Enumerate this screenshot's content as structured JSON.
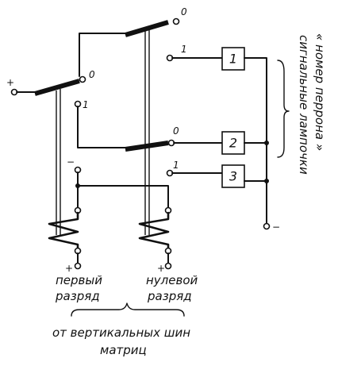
{
  "contacts": {
    "top_right": "0",
    "sw1_mid": "0",
    "plus_left": "+",
    "sw1_one": "1",
    "sw2_zero": "0",
    "minus_rail": "−",
    "sw2_one": "1",
    "plus_coil1": "+",
    "plus_coil2": "+",
    "minus_bus": "−",
    "lamp1_contact": "1",
    "lamp3_contact": "1"
  },
  "lamps": [
    "1",
    "2",
    "3"
  ],
  "captions": {
    "coil1_line1": "первый",
    "coil1_line2": "разряд",
    "coil2_line1": "нулевой",
    "coil2_line2": "разряд",
    "bottom_line1": "от вертикальных шин",
    "bottom_line2": "матриц",
    "side_line1": "сигнальные лампочки",
    "side_line2": "« номер перрона »"
  }
}
